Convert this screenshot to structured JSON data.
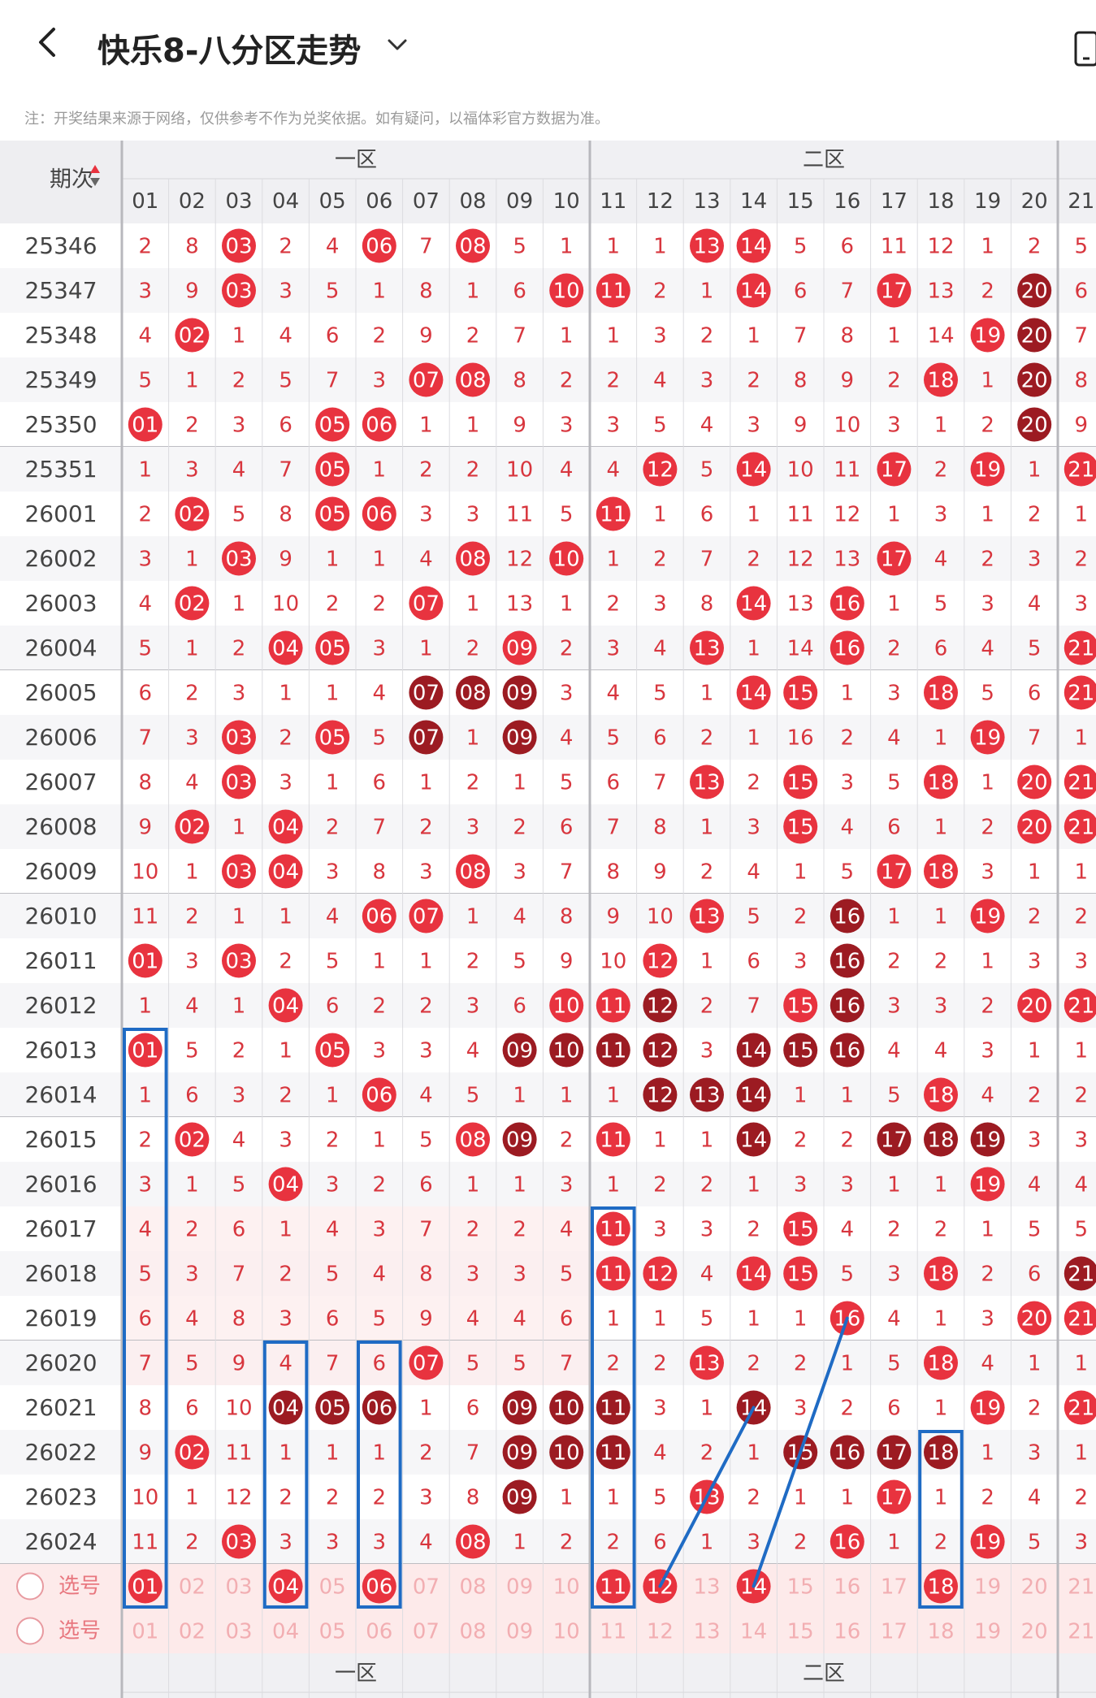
{
  "header": {
    "title": "快乐8-八分区走势",
    "back_icon": "chevron-left-icon",
    "dropdown_icon": "chevron-down-icon",
    "right_icon": "phone-icon"
  },
  "note": "注：开奖结果来源于网络，仅供参考不作为兑奖依据。如有疑问，以福体彩官方数据为准。",
  "table": {
    "period_header": "期次",
    "sort_icon": "sort-updown-icon",
    "zone1_label": "一区",
    "zone2_label": "二区",
    "columns": [
      "01",
      "02",
      "03",
      "04",
      "05",
      "06",
      "07",
      "08",
      "09",
      "10",
      "11",
      "12",
      "13",
      "14",
      "15",
      "16",
      "17",
      "18",
      "19",
      "20",
      "21"
    ],
    "rows": [
      {
        "period": "25346",
        "cells": [
          "2",
          "8",
          "03",
          "2",
          "4",
          "06",
          "7",
          "08",
          "5",
          "1",
          "1",
          "1",
          "13",
          "14",
          "5",
          "6",
          "11",
          "12",
          "1",
          "2",
          "5"
        ]
      },
      {
        "period": "25347",
        "cells": [
          "3",
          "9",
          "03",
          "3",
          "5",
          "1",
          "8",
          "1",
          "6",
          "10",
          "11",
          "2",
          "1",
          "14",
          "6",
          "7",
          "17",
          "13",
          "2",
          "20",
          "6"
        ]
      },
      {
        "period": "25348",
        "cells": [
          "4",
          "02",
          "1",
          "4",
          "6",
          "2",
          "9",
          "2",
          "7",
          "1",
          "1",
          "3",
          "2",
          "1",
          "7",
          "8",
          "1",
          "14",
          "19",
          "20",
          "7"
        ]
      },
      {
        "period": "25349",
        "cells": [
          "5",
          "1",
          "2",
          "5",
          "7",
          "3",
          "07",
          "08",
          "8",
          "2",
          "2",
          "4",
          "3",
          "2",
          "8",
          "9",
          "2",
          "18",
          "1",
          "20",
          "8"
        ]
      },
      {
        "period": "25350",
        "cells": [
          "01",
          "2",
          "3",
          "6",
          "05",
          "06",
          "1",
          "1",
          "9",
          "3",
          "3",
          "5",
          "4",
          "3",
          "9",
          "10",
          "3",
          "1",
          "2",
          "20",
          "9"
        ]
      },
      {
        "period": "25351",
        "cells": [
          "1",
          "3",
          "4",
          "7",
          "05",
          "1",
          "2",
          "2",
          "10",
          "4",
          "4",
          "12",
          "5",
          "14",
          "10",
          "11",
          "17",
          "2",
          "19",
          "1",
          "21"
        ]
      },
      {
        "period": "26001",
        "cells": [
          "2",
          "02",
          "5",
          "8",
          "05",
          "06",
          "3",
          "3",
          "11",
          "5",
          "11",
          "1",
          "6",
          "1",
          "11",
          "12",
          "1",
          "3",
          "1",
          "2",
          "1"
        ]
      },
      {
        "period": "26002",
        "cells": [
          "3",
          "1",
          "03",
          "9",
          "1",
          "1",
          "4",
          "08",
          "12",
          "10",
          "1",
          "2",
          "7",
          "2",
          "12",
          "13",
          "17",
          "4",
          "2",
          "3",
          "2"
        ]
      },
      {
        "period": "26003",
        "cells": [
          "4",
          "02",
          "1",
          "10",
          "2",
          "2",
          "07",
          "1",
          "13",
          "1",
          "2",
          "3",
          "8",
          "14",
          "13",
          "16",
          "1",
          "5",
          "3",
          "4",
          "3"
        ]
      },
      {
        "period": "26004",
        "cells": [
          "5",
          "1",
          "2",
          "04",
          "05",
          "3",
          "1",
          "2",
          "09",
          "2",
          "3",
          "4",
          "13",
          "1",
          "14",
          "16",
          "2",
          "6",
          "4",
          "5",
          "21"
        ]
      },
      {
        "period": "26005",
        "cells": [
          "6",
          "2",
          "3",
          "1",
          "1",
          "4",
          "07",
          "08",
          "09",
          "3",
          "4",
          "5",
          "1",
          "14",
          "15",
          "1",
          "3",
          "18",
          "5",
          "6",
          "21"
        ]
      },
      {
        "period": "26006",
        "cells": [
          "7",
          "3",
          "03",
          "2",
          "05",
          "5",
          "07",
          "1",
          "09",
          "4",
          "5",
          "6",
          "2",
          "1",
          "16",
          "2",
          "4",
          "1",
          "19",
          "7",
          "1"
        ]
      },
      {
        "period": "26007",
        "cells": [
          "8",
          "4",
          "03",
          "3",
          "1",
          "6",
          "1",
          "2",
          "1",
          "5",
          "6",
          "7",
          "13",
          "2",
          "15",
          "3",
          "5",
          "18",
          "1",
          "20",
          "21"
        ]
      },
      {
        "period": "26008",
        "cells": [
          "9",
          "02",
          "1",
          "04",
          "2",
          "7",
          "2",
          "3",
          "2",
          "6",
          "7",
          "8",
          "1",
          "3",
          "15",
          "4",
          "6",
          "1",
          "2",
          "20",
          "21"
        ]
      },
      {
        "period": "26009",
        "cells": [
          "10",
          "1",
          "03",
          "04",
          "3",
          "8",
          "3",
          "08",
          "3",
          "7",
          "8",
          "9",
          "2",
          "4",
          "1",
          "5",
          "17",
          "18",
          "3",
          "1",
          "1"
        ]
      },
      {
        "period": "26010",
        "cells": [
          "11",
          "2",
          "1",
          "1",
          "4",
          "06",
          "07",
          "1",
          "4",
          "8",
          "9",
          "10",
          "13",
          "5",
          "2",
          "16",
          "1",
          "1",
          "19",
          "2",
          "2"
        ]
      },
      {
        "period": "26011",
        "cells": [
          "01",
          "3",
          "03",
          "2",
          "5",
          "1",
          "1",
          "2",
          "5",
          "9",
          "10",
          "12",
          "1",
          "6",
          "3",
          "16",
          "2",
          "2",
          "1",
          "3",
          "3"
        ]
      },
      {
        "period": "26012",
        "cells": [
          "1",
          "4",
          "1",
          "04",
          "6",
          "2",
          "2",
          "3",
          "6",
          "10",
          "11",
          "12",
          "2",
          "7",
          "15",
          "16",
          "3",
          "3",
          "2",
          "20",
          "21"
        ]
      },
      {
        "period": "26013",
        "cells": [
          "01",
          "5",
          "2",
          "1",
          "05",
          "3",
          "3",
          "4",
          "09",
          "10",
          "11",
          "12",
          "3",
          "14",
          "15",
          "16",
          "4",
          "4",
          "3",
          "1",
          "1"
        ]
      },
      {
        "period": "26014",
        "cells": [
          "1",
          "6",
          "3",
          "2",
          "1",
          "06",
          "4",
          "5",
          "1",
          "1",
          "1",
          "12",
          "13",
          "14",
          "1",
          "1",
          "5",
          "18",
          "4",
          "2",
          "2"
        ]
      },
      {
        "period": "26015",
        "cells": [
          "2",
          "02",
          "4",
          "3",
          "2",
          "1",
          "5",
          "08",
          "09",
          "2",
          "11",
          "1",
          "1",
          "14",
          "2",
          "2",
          "17",
          "18",
          "19",
          "3",
          "3"
        ]
      },
      {
        "period": "26016",
        "cells": [
          "3",
          "1",
          "5",
          "04",
          "3",
          "2",
          "6",
          "1",
          "1",
          "3",
          "1",
          "2",
          "2",
          "1",
          "3",
          "3",
          "1",
          "1",
          "19",
          "4",
          "4"
        ]
      },
      {
        "period": "26017",
        "cells": [
          "4",
          "2",
          "6",
          "1",
          "4",
          "3",
          "7",
          "2",
          "2",
          "4",
          "11",
          "3",
          "3",
          "2",
          "15",
          "4",
          "2",
          "2",
          "1",
          "5",
          "5"
        ]
      },
      {
        "period": "26018",
        "cells": [
          "5",
          "3",
          "7",
          "2",
          "5",
          "4",
          "8",
          "3",
          "3",
          "5",
          "11",
          "12",
          "4",
          "14",
          "15",
          "5",
          "3",
          "18",
          "2",
          "6",
          "21"
        ]
      },
      {
        "period": "26019",
        "cells": [
          "6",
          "4",
          "8",
          "3",
          "6",
          "5",
          "9",
          "4",
          "4",
          "6",
          "1",
          "1",
          "5",
          "1",
          "1",
          "16",
          "4",
          "1",
          "3",
          "20",
          "21"
        ]
      },
      {
        "period": "26020",
        "cells": [
          "7",
          "5",
          "9",
          "4",
          "7",
          "6",
          "07",
          "5",
          "5",
          "7",
          "2",
          "2",
          "13",
          "2",
          "2",
          "1",
          "5",
          "18",
          "4",
          "1",
          "1"
        ]
      },
      {
        "period": "26021",
        "cells": [
          "8",
          "6",
          "10",
          "04",
          "05",
          "06",
          "1",
          "6",
          "09",
          "10",
          "11",
          "3",
          "1",
          "14",
          "3",
          "2",
          "6",
          "1",
          "19",
          "2",
          "21"
        ]
      },
      {
        "period": "26022",
        "cells": [
          "9",
          "02",
          "11",
          "1",
          "1",
          "1",
          "2",
          "7",
          "09",
          "10",
          "11",
          "4",
          "2",
          "1",
          "15",
          "16",
          "17",
          "18",
          "1",
          "3",
          "1"
        ]
      },
      {
        "period": "26023",
        "cells": [
          "10",
          "1",
          "12",
          "2",
          "2",
          "2",
          "3",
          "8",
          "09",
          "1",
          "1",
          "5",
          "13",
          "2",
          "1",
          "1",
          "17",
          "1",
          "2",
          "4",
          "2"
        ]
      },
      {
        "period": "26024",
        "cells": [
          "11",
          "2",
          "03",
          "3",
          "3",
          "3",
          "4",
          "08",
          "1",
          "2",
          "2",
          "6",
          "1",
          "3",
          "2",
          "16",
          "1",
          "2",
          "19",
          "5",
          "3"
        ]
      }
    ],
    "select_rows": [
      {
        "label": "选号",
        "numbers": [
          "01",
          "02",
          "03",
          "04",
          "05",
          "06",
          "07",
          "08",
          "09",
          "10",
          "11",
          "12",
          "13",
          "14",
          "15",
          "16",
          "17",
          "18",
          "19",
          "20",
          "21"
        ]
      },
      {
        "label": "选号",
        "numbers": [
          "01",
          "02",
          "03",
          "04",
          "05",
          "06",
          "07",
          "08",
          "09",
          "10",
          "11",
          "12",
          "13",
          "14",
          "15",
          "16",
          "17",
          "18",
          "19",
          "20",
          "21"
        ]
      }
    ],
    "selected_row1": [
      "01",
      "04",
      "06",
      "11",
      "12",
      "14",
      "18"
    ]
  },
  "colors": {
    "red_ball": "#e8333f",
    "dark_ball": "#9c1b22",
    "miss_text": "#d8363e",
    "row_alt": "#f6f6f8",
    "pink_area": "#fdeeee",
    "select_bg": "#fdeaea",
    "blue_box": "#1f6bc4",
    "header_bg": "#f0f0f3"
  }
}
